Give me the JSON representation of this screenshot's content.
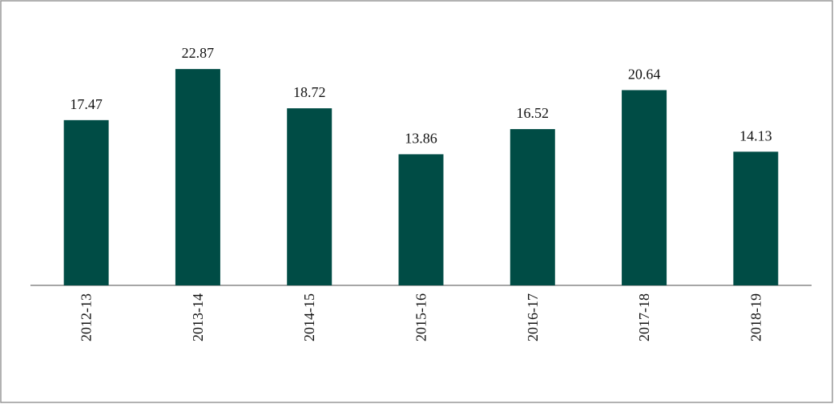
{
  "chart_data": {
    "type": "bar",
    "categories": [
      "2012-13",
      "2013-14",
      "2014-15",
      "2015-16",
      "2016-17",
      "2017-18",
      "2018-19"
    ],
    "values": [
      17.47,
      22.87,
      18.72,
      13.86,
      16.52,
      20.64,
      14.13
    ],
    "color": "#004c45",
    "ylim": [
      0,
      25
    ]
  }
}
